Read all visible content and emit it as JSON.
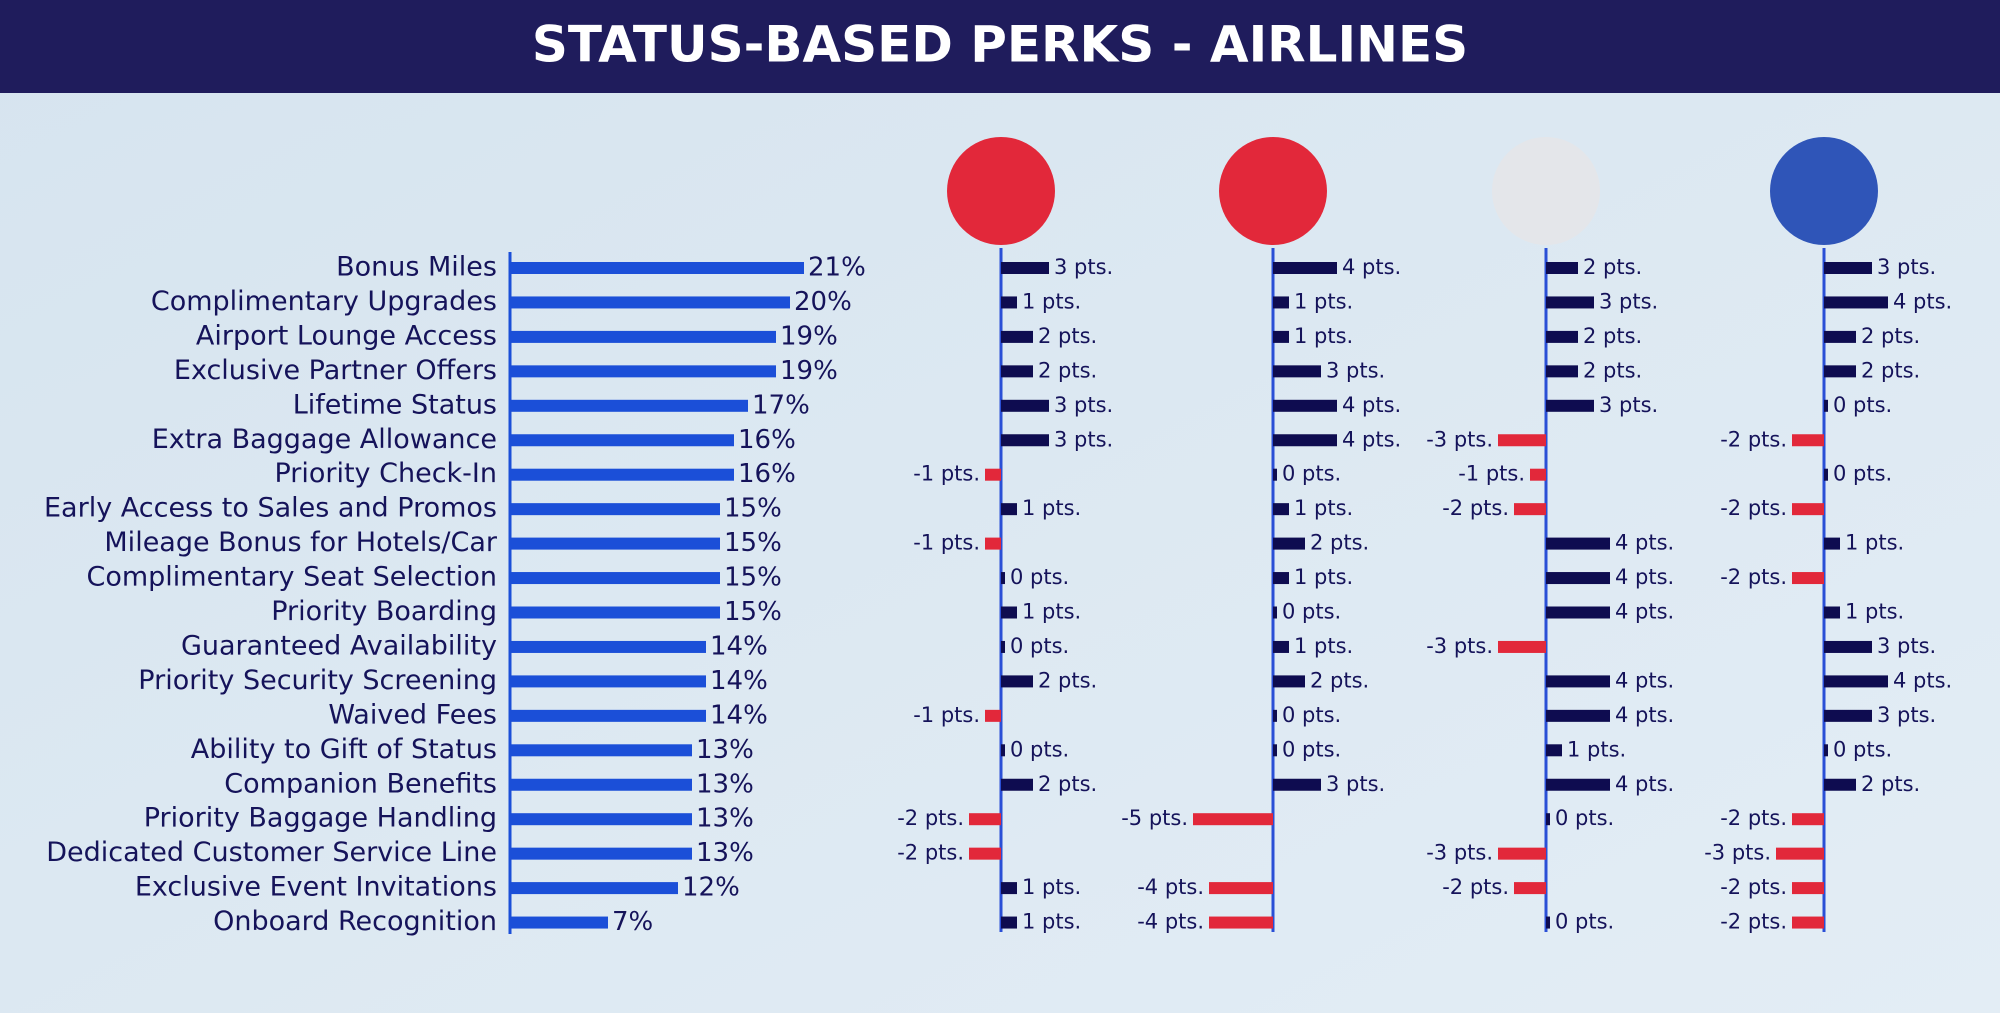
{
  "chart_data": [
    {
      "type": "bar",
      "title": "STATUS-BASED PERKS - AIRLINES",
      "color": "#1b4fd8",
      "categories": [
        "Bonus Miles",
        "Complimentary Upgrades",
        "Airport Lounge Access",
        "Exclusive Partner Offers",
        "Lifetime Status",
        "Extra Baggage Allowance",
        "Priority Check-In",
        "Early Access to Sales and Promos",
        "Mileage Bonus for Hotels/Car",
        "Complimentary Seat Selection",
        "Priority Boarding",
        "Guaranteed Availability",
        "Priority Security Screening",
        "Waived Fees",
        "Ability to Gift of Status",
        "Companion Benefits",
        "Priority Baggage Handling",
        "Dedicated Customer Service Line",
        "Exclusive Event Invitations",
        "Onboard Recognition"
      ],
      "values": [
        21,
        20,
        19,
        19,
        17,
        16,
        16,
        15,
        15,
        15,
        15,
        14,
        14,
        14,
        13,
        13,
        13,
        13,
        12,
        7
      ],
      "value_labels": [
        "21%",
        "20%",
        "19%",
        "19%",
        "17%",
        "16%",
        "16%",
        "15%",
        "15%",
        "15%",
        "15%",
        "14%",
        "14%",
        "14%",
        "13%",
        "13%",
        "13%",
        "13%",
        "12%",
        "7%"
      ]
    },
    {
      "type": "diverging",
      "positive_color": "#0e0c50",
      "negative_color": "#e2283a",
      "icon_color": "#e2283a",
      "values": [
        3,
        1,
        2,
        2,
        3,
        3,
        -1,
        1,
        -1,
        0,
        1,
        0,
        2,
        -1,
        0,
        2,
        -2,
        -2,
        1,
        1
      ],
      "value_labels": [
        "3 pts.",
        "1 pts.",
        "2 pts.",
        "2 pts.",
        "3 pts.",
        "3 pts.",
        "-1 pts.",
        "1 pts.",
        "-1 pts.",
        "0 pts.",
        "1 pts.",
        "0 pts.",
        "2 pts.",
        "-1 pts.",
        "0 pts.",
        "2 pts.",
        "-2 pts.",
        "-2 pts.",
        "1 pts.",
        "1 pts."
      ]
    },
    {
      "type": "diverging",
      "positive_color": "#0e0c50",
      "negative_color": "#e2283a",
      "icon_color": "#e2283a",
      "values": [
        4,
        1,
        1,
        3,
        4,
        4,
        0,
        1,
        2,
        1,
        0,
        1,
        2,
        0,
        0,
        3,
        -5,
        null,
        -4,
        -4
      ],
      "value_labels": [
        "4 pts.",
        "1 pts.",
        "1 pts.",
        "3 pts.",
        "4 pts.",
        "4 pts.",
        "0 pts.",
        "1 pts.",
        "2 pts.",
        "1 pts.",
        "0 pts.",
        "1 pts.",
        "2 pts.",
        "0 pts.",
        "0 pts.",
        "3 pts.",
        "-5 pts.",
        null,
        "-4 pts.",
        "-4 pts."
      ]
    },
    {
      "type": "diverging",
      "positive_color": "#0e0c50",
      "negative_color": "#e2283a",
      "icon_color": "#e4e6ea",
      "values": [
        2,
        3,
        2,
        2,
        3,
        -3,
        -1,
        -2,
        4,
        4,
        4,
        -3,
        4,
        4,
        1,
        4,
        0,
        -3,
        -2,
        0
      ],
      "value_labels": [
        "2 pts.",
        "3 pts.",
        "2 pts.",
        "2 pts.",
        "3 pts.",
        "-3 pts.",
        "-1 pts.",
        "-2 pts.",
        "4 pts.",
        "4 pts.",
        "4 pts.",
        "-3 pts.",
        "4 pts.",
        "4 pts.",
        "1 pts.",
        "4 pts.",
        "0 pts.",
        "-3 pts.",
        "-2 pts.",
        "0 pts."
      ]
    },
    {
      "type": "diverging",
      "positive_color": "#0e0c50",
      "negative_color": "#e2283a",
      "icon_color": "#2f55b8",
      "values": [
        3,
        4,
        2,
        2,
        0,
        -2,
        0,
        -2,
        1,
        -2,
        1,
        3,
        4,
        3,
        0,
        2,
        -2,
        -3,
        -2,
        -2
      ],
      "value_labels": [
        "3 pts.",
        "4 pts.",
        "2 pts.",
        "2 pts.",
        "0 pts.",
        "-2 pts.",
        "0 pts.",
        "-2 pts.",
        "1 pts.",
        "-2 pts.",
        "1 pts.",
        "3 pts.",
        "4 pts.",
        "3 pts.",
        "0 pts.",
        "2 pts.",
        "-2 pts.",
        "-3 pts.",
        "-2 pts.",
        "-2 pts."
      ]
    }
  ]
}
